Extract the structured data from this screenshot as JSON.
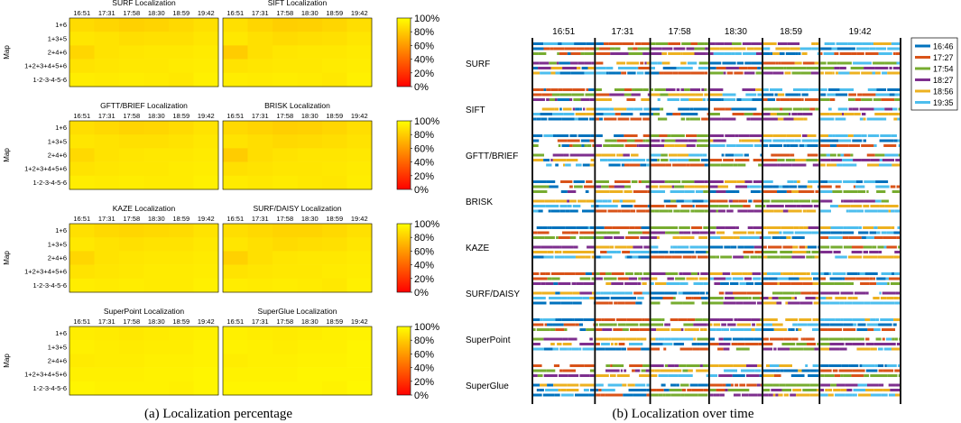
{
  "figure": {
    "caption_a": "(a) Localization percentage",
    "caption_b": "(b) Localization over time"
  },
  "chart_data": [
    {
      "type": "heatmap",
      "id": "a",
      "ylabel": "Map",
      "x_tick_labels": [
        "16:51",
        "17:31",
        "17:58",
        "18:30",
        "18:59",
        "19:42"
      ],
      "y_tick_labels": [
        "1+6",
        "1+3+5",
        "2+4+6",
        "1+2+3+4+5+6",
        "1-2-3-4-5-6"
      ],
      "colorbar": {
        "tick_labels": [
          "100%",
          "80%",
          "60%",
          "40%",
          "20%",
          "0%"
        ],
        "range": [
          0,
          100
        ],
        "colormap": "autumn",
        "color_low": "#ff0000",
        "color_high": "#ffff00"
      },
      "panels": [
        {
          "title": "SURF Localization",
          "values": [
            [
              86,
              84,
              82,
              83,
              85,
              88
            ],
            [
              90,
              89,
              87,
              88,
              88,
              90
            ],
            [
              84,
              89,
              90,
              91,
              91,
              92
            ],
            [
              89,
              90,
              91,
              91,
              92,
              93
            ],
            [
              93,
              92,
              93,
              92,
              91,
              94
            ]
          ]
        },
        {
          "title": "SIFT Localization",
          "values": [
            [
              88,
              84,
              81,
              82,
              84,
              87
            ],
            [
              91,
              88,
              86,
              87,
              88,
              90
            ],
            [
              80,
              88,
              90,
              91,
              91,
              92
            ],
            [
              89,
              90,
              91,
              91,
              92,
              93
            ],
            [
              93,
              92,
              93,
              92,
              91,
              94
            ]
          ]
        },
        {
          "title": "GFTT/BRIEF Localization",
          "values": [
            [
              87,
              85,
              83,
              84,
              86,
              89
            ],
            [
              90,
              89,
              88,
              88,
              89,
              91
            ],
            [
              85,
              89,
              90,
              91,
              91,
              92
            ],
            [
              89,
              90,
              91,
              91,
              92,
              93
            ],
            [
              93,
              92,
              93,
              92,
              92,
              94
            ]
          ]
        },
        {
          "title": "BRISK Localization",
          "values": [
            [
              85,
              83,
              81,
              82,
              84,
              87
            ],
            [
              89,
              87,
              85,
              86,
              87,
              89
            ],
            [
              80,
              87,
              89,
              90,
              90,
              91
            ],
            [
              88,
              89,
              90,
              90,
              91,
              92
            ],
            [
              92,
              91,
              92,
              91,
              90,
              93
            ]
          ]
        },
        {
          "title": "KAZE Localization",
          "values": [
            [
              88,
              85,
              84,
              85,
              86,
              89
            ],
            [
              91,
              89,
              88,
              89,
              89,
              91
            ],
            [
              84,
              89,
              90,
              91,
              91,
              92
            ],
            [
              89,
              90,
              91,
              92,
              92,
              93
            ],
            [
              93,
              92,
              93,
              92,
              92,
              94
            ]
          ]
        },
        {
          "title": "SURF/DAISY Localization",
          "values": [
            [
              87,
              85,
              83,
              83,
              85,
              88
            ],
            [
              90,
              88,
              86,
              87,
              88,
              90
            ],
            [
              82,
              88,
              90,
              91,
              91,
              92
            ],
            [
              89,
              90,
              91,
              91,
              92,
              93
            ],
            [
              93,
              92,
              93,
              92,
              91,
              94
            ]
          ]
        },
        {
          "title": "SuperPoint Localization",
          "values": [
            [
              93,
              92,
              91,
              92,
              93,
              94
            ],
            [
              94,
              93,
              92,
              93,
              93,
              95
            ],
            [
              92,
              93,
              93,
              94,
              94,
              95
            ],
            [
              94,
              94,
              94,
              95,
              95,
              96
            ],
            [
              96,
              95,
              95,
              95,
              94,
              96
            ]
          ]
        },
        {
          "title": "SuperGlue Localization",
          "values": [
            [
              94,
              93,
              92,
              93,
              94,
              95
            ],
            [
              95,
              94,
              93,
              94,
              94,
              96
            ],
            [
              93,
              94,
              94,
              95,
              95,
              96
            ],
            [
              95,
              95,
              95,
              96,
              96,
              96
            ],
            [
              96,
              96,
              96,
              96,
              95,
              97
            ]
          ]
        }
      ]
    },
    {
      "type": "timeline",
      "id": "b",
      "x_tick_labels": [
        "16:51",
        "17:31",
        "17:58",
        "18:30",
        "18:59",
        "19:42"
      ],
      "segment_fractions": [
        0,
        0.17,
        0.32,
        0.48,
        0.625,
        0.78,
        1.0
      ],
      "methods": [
        "SURF",
        "SIFT",
        "GFTT/BRIEF",
        "BRISK",
        "KAZE",
        "SURF/DAISY",
        "SuperPoint",
        "SuperGlue"
      ],
      "legend": {
        "position": "top-right",
        "entries": [
          {
            "label": "16:46",
            "color": "#0072bd"
          },
          {
            "label": "17:27",
            "color": "#d95319"
          },
          {
            "label": "17:54",
            "color": "#77ac30"
          },
          {
            "label": "18:27",
            "color": "#7e2f8e"
          },
          {
            "label": "18:56",
            "color": "#edb120"
          },
          {
            "label": "19:35",
            "color": "#4dbeee"
          }
        ]
      }
    }
  ]
}
